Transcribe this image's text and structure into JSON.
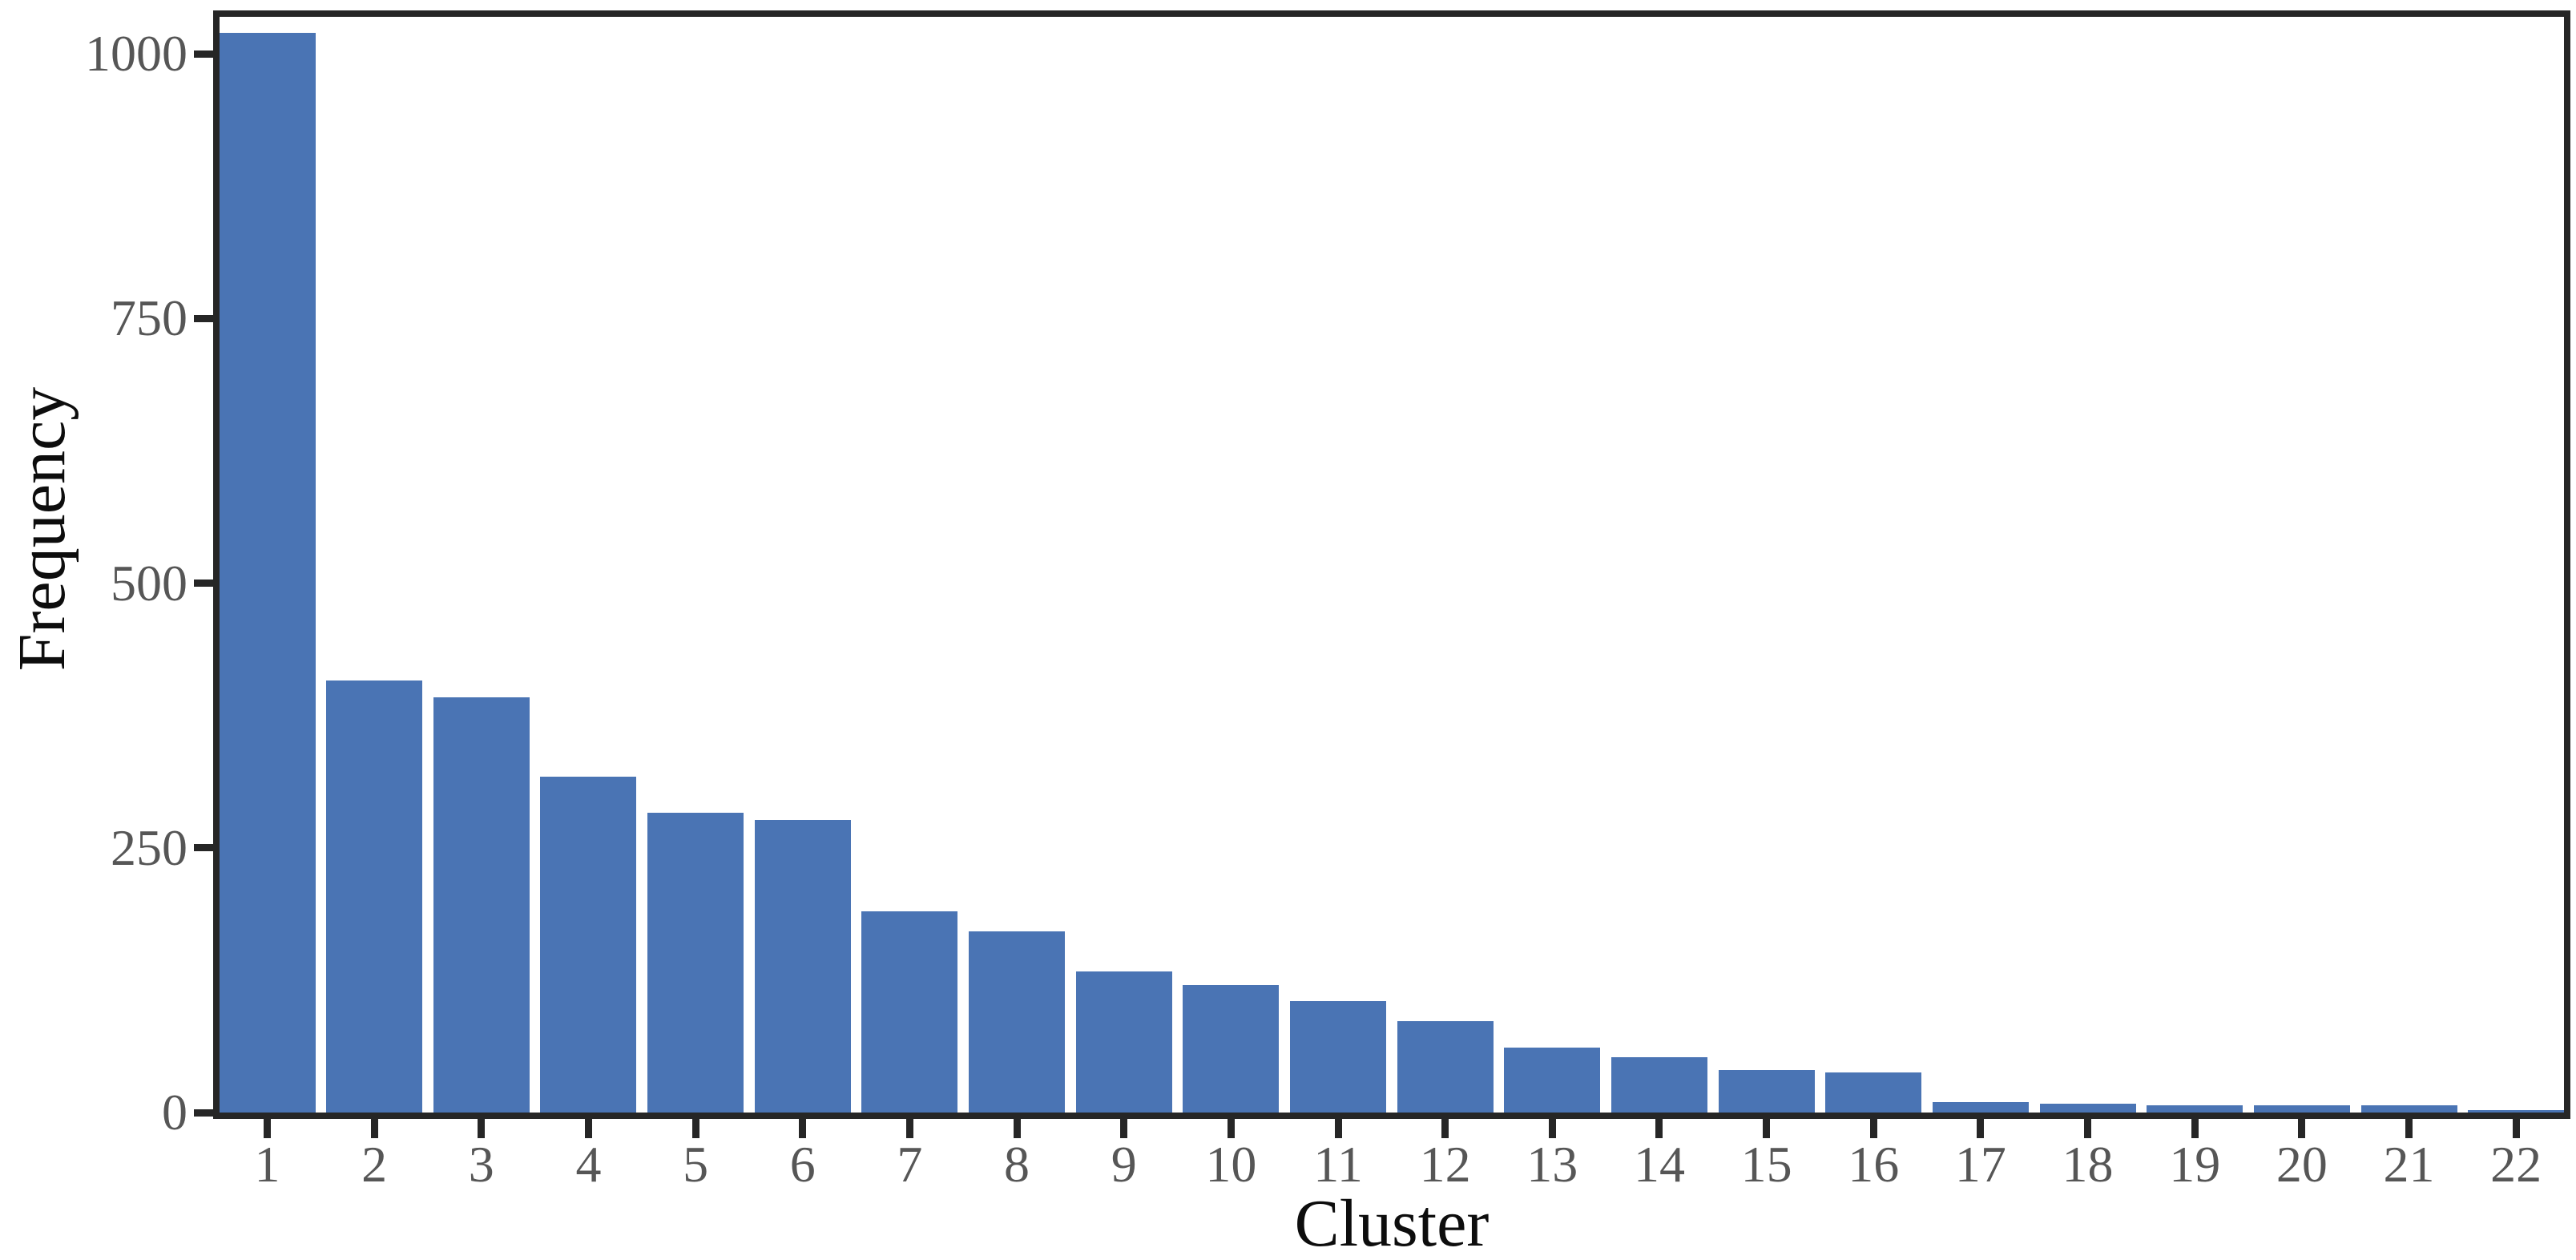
{
  "chart_data": {
    "type": "bar",
    "title": "",
    "xlabel": "Cluster",
    "ylabel": "Frequency",
    "categories": [
      "1",
      "2",
      "3",
      "4",
      "5",
      "6",
      "7",
      "8",
      "9",
      "10",
      "11",
      "12",
      "13",
      "14",
      "15",
      "16",
      "17",
      "18",
      "19",
      "20",
      "21",
      "22"
    ],
    "values": [
      1020,
      408,
      392,
      317,
      283,
      276,
      190,
      171,
      133,
      120,
      105,
      86,
      61,
      52,
      40,
      38,
      10,
      8,
      7,
      7,
      7,
      2
    ],
    "yticks": [
      0,
      250,
      500,
      750,
      1000
    ],
    "ylim": [
      0,
      1035
    ],
    "grid": false,
    "legend": "none",
    "colors": {
      "bar_fill": "#4A74B4",
      "axis": "#262626",
      "tick_label": "#565656",
      "axis_label": "#0d0d0d",
      "background": "#ffffff"
    }
  }
}
